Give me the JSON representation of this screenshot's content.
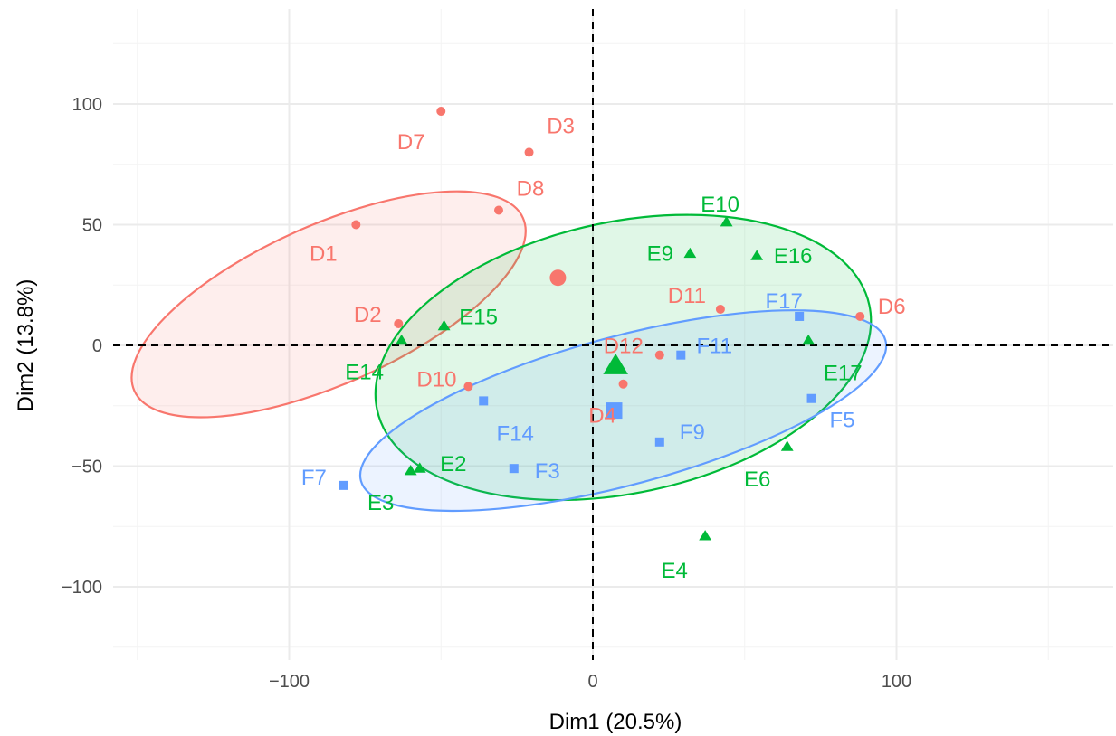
{
  "chart_data": {
    "type": "scatter",
    "xlabel": "Dim1 (20.5%)",
    "ylabel": "Dim2 (13.8%)",
    "xlim": [
      -160,
      170
    ],
    "ylim": [
      -125,
      132
    ],
    "x_ticks": [
      -100,
      0,
      100
    ],
    "x_tick_labels": [
      "−100",
      "0",
      "100"
    ],
    "y_ticks": [
      -100,
      -50,
      0,
      50,
      100
    ],
    "y_tick_labels": [
      "−100",
      "−50",
      "0",
      "50",
      "100"
    ],
    "grid": true,
    "reference_lines": {
      "x": 0,
      "y": 0
    },
    "legend": "none",
    "groups": [
      {
        "id": "D",
        "color": "#f8766d",
        "shape": "circle",
        "centroid": [
          -11.5,
          28
        ],
        "ellipse": {
          "cx": -87,
          "cy": 17,
          "rx": 235,
          "ry": 88,
          "angle_deg": -24
        },
        "points": [
          {
            "label": "D1",
            "x": -78,
            "y": 50
          },
          {
            "label": "D2",
            "x": -64,
            "y": 9
          },
          {
            "label": "D3",
            "x": -21,
            "y": 80
          },
          {
            "label": "D4",
            "x": 10,
            "y": -16
          },
          {
            "label": "D6",
            "x": 88,
            "y": 12
          },
          {
            "label": "D7",
            "x": -50,
            "y": 97
          },
          {
            "label": "D8",
            "x": -31,
            "y": 56
          },
          {
            "label": "D10",
            "x": -41,
            "y": -17
          },
          {
            "label": "D11",
            "x": 42,
            "y": 15
          },
          {
            "label": "D12",
            "x": 22,
            "y": -4
          }
        ]
      },
      {
        "id": "E",
        "color": "#00ba38",
        "shape": "triangle",
        "centroid": [
          7.5,
          -8.5
        ],
        "ellipse": {
          "cx": 10,
          "cy": -5,
          "rx": 278,
          "ry": 150,
          "angle_deg": -12
        },
        "points": [
          {
            "label": "E2",
            "x": -57,
            "y": -51
          },
          {
            "label": "E3",
            "x": -60,
            "y": -52
          },
          {
            "label": "E4",
            "x": 37,
            "y": -79
          },
          {
            "label": "E6",
            "x": 64,
            "y": -42
          },
          {
            "label": "E9",
            "x": 32,
            "y": 38
          },
          {
            "label": "E10",
            "x": 44,
            "y": 51
          },
          {
            "label": "E14",
            "x": -63,
            "y": 2
          },
          {
            "label": "E15",
            "x": -49,
            "y": 8
          },
          {
            "label": "E16",
            "x": 54,
            "y": 37
          },
          {
            "label": "E17",
            "x": 71,
            "y": 2
          }
        ]
      },
      {
        "id": "F",
        "color": "#619cff",
        "shape": "square",
        "centroid": [
          7,
          -27
        ],
        "ellipse": {
          "cx": 10,
          "cy": -27,
          "rx": 300,
          "ry": 82,
          "angle_deg": -15
        },
        "points": [
          {
            "label": "F3",
            "x": -26,
            "y": -51
          },
          {
            "label": "F5",
            "x": 72,
            "y": -22
          },
          {
            "label": "F7",
            "x": -82,
            "y": -58
          },
          {
            "label": "F9",
            "x": 22,
            "y": -40
          },
          {
            "label": "F11",
            "x": 29,
            "y": -4
          },
          {
            "label": "F14",
            "x": -36,
            "y": -23
          },
          {
            "label": "F17",
            "x": 68,
            "y": 12
          }
        ]
      }
    ]
  }
}
